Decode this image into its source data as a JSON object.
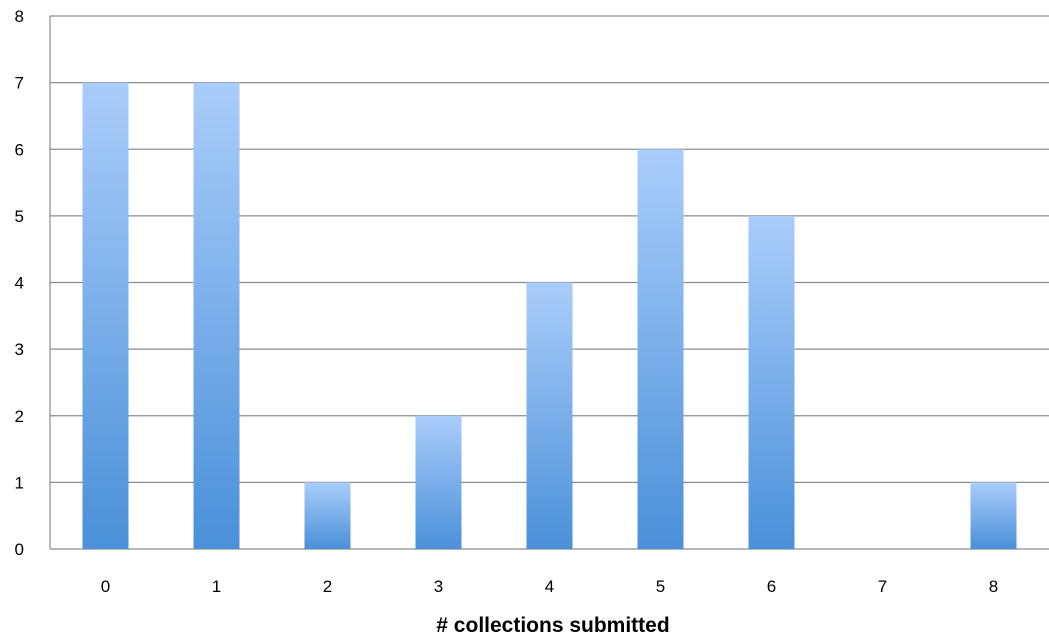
{
  "chart_data": {
    "type": "bar",
    "title": "",
    "xlabel": "# collections submitted",
    "ylabel": "",
    "categories": [
      "0",
      "1",
      "2",
      "3",
      "4",
      "5",
      "6",
      "7",
      "8"
    ],
    "values": [
      7,
      7,
      1,
      2,
      4,
      6,
      5,
      0,
      1
    ],
    "ylim": [
      0,
      8
    ],
    "yticks": [
      "0",
      "1",
      "2",
      "3",
      "4",
      "5",
      "6",
      "7",
      "8"
    ],
    "grid": true,
    "legend": "none",
    "colors": {
      "bar_top": "#aacdfb",
      "bar_bottom": "#4a90d9",
      "gridline": "#8c8c8c"
    }
  }
}
